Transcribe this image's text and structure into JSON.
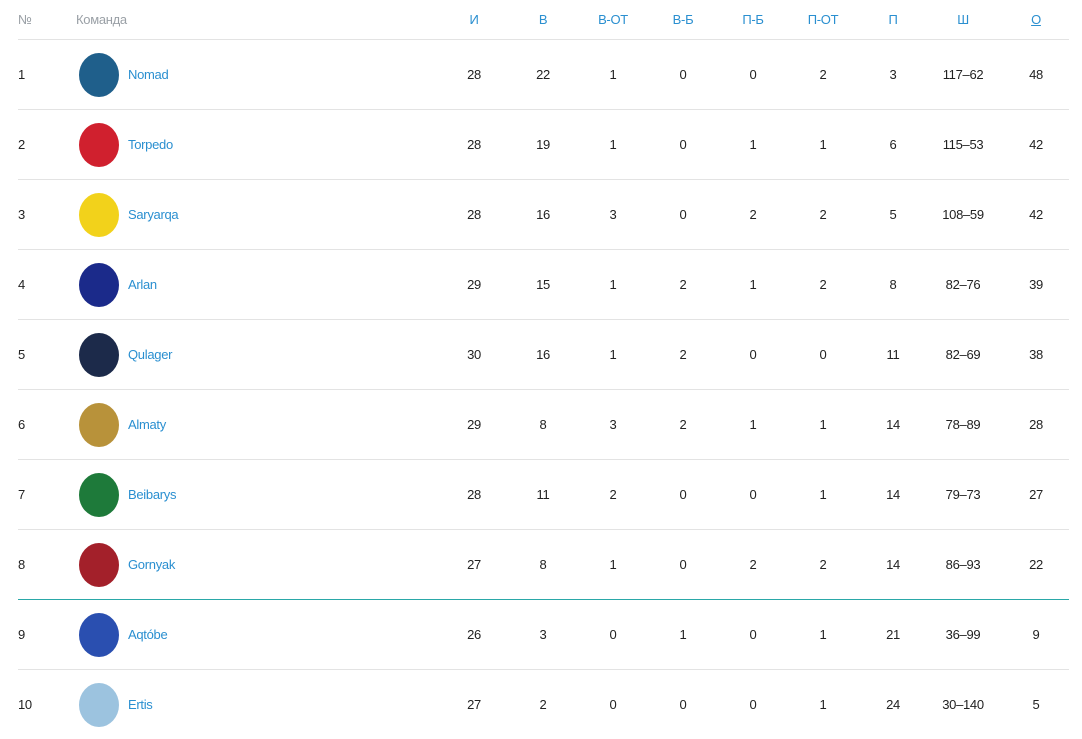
{
  "headers": {
    "pos": "№",
    "team": "Команда",
    "gp": "И",
    "w": "В",
    "otw": "В-ОТ",
    "sow": "В-Б",
    "sol": "П-Б",
    "otl": "П-ОТ",
    "l": "П",
    "goals": "Ш",
    "pts": "О"
  },
  "colors": {
    "accent": "#2a8fd0",
    "zone_line": "#2aa8a8"
  },
  "rows": [
    {
      "pos": "1",
      "team": "Nomad",
      "gp": "28",
      "w": "22",
      "otw": "1",
      "sow": "0",
      "sol": "0",
      "otl": "2",
      "l": "3",
      "goals": "117–62",
      "pts": "48",
      "logo": "#1f5f8b"
    },
    {
      "pos": "2",
      "team": "Torpedo",
      "gp": "28",
      "w": "19",
      "otw": "1",
      "sow": "0",
      "sol": "1",
      "otl": "1",
      "l": "6",
      "goals": "115–53",
      "pts": "42",
      "logo": "#d0202e"
    },
    {
      "pos": "3",
      "team": "Saryarqa",
      "gp": "28",
      "w": "16",
      "otw": "3",
      "sow": "0",
      "sol": "2",
      "otl": "2",
      "l": "5",
      "goals": "108–59",
      "pts": "42",
      "logo": "#f2d21b"
    },
    {
      "pos": "4",
      "team": "Arlan",
      "gp": "29",
      "w": "15",
      "otw": "1",
      "sow": "2",
      "sol": "1",
      "otl": "2",
      "l": "8",
      "goals": "82–76",
      "pts": "39",
      "logo": "#1b2a8a"
    },
    {
      "pos": "5",
      "team": "Qulager",
      "gp": "30",
      "w": "16",
      "otw": "1",
      "sow": "2",
      "sol": "0",
      "otl": "0",
      "l": "11",
      "goals": "82–69",
      "pts": "38",
      "logo": "#1c2a4a"
    },
    {
      "pos": "6",
      "team": "Almaty",
      "gp": "29",
      "w": "8",
      "otw": "3",
      "sow": "2",
      "sol": "1",
      "otl": "1",
      "l": "14",
      "goals": "78–89",
      "pts": "28",
      "logo": "#b8923a"
    },
    {
      "pos": "7",
      "team": "Beibarys",
      "gp": "28",
      "w": "11",
      "otw": "2",
      "sow": "0",
      "sol": "0",
      "otl": "1",
      "l": "14",
      "goals": "79–73",
      "pts": "27",
      "logo": "#1e7a3a"
    },
    {
      "pos": "8",
      "team": "Gornyak",
      "gp": "27",
      "w": "8",
      "otw": "1",
      "sow": "0",
      "sol": "2",
      "otl": "2",
      "l": "14",
      "goals": "86–93",
      "pts": "22",
      "logo": "#a3202a"
    },
    {
      "pos": "9",
      "team": "Aqtóbe",
      "gp": "26",
      "w": "3",
      "otw": "0",
      "sow": "1",
      "sol": "0",
      "otl": "1",
      "l": "21",
      "goals": "36–99",
      "pts": "9",
      "logo": "#2a4fb0"
    },
    {
      "pos": "10",
      "team": "Ertis",
      "gp": "27",
      "w": "2",
      "otw": "0",
      "sow": "0",
      "sol": "0",
      "otl": "1",
      "l": "24",
      "goals": "30–140",
      "pts": "5",
      "logo": "#9cc3df"
    }
  ]
}
